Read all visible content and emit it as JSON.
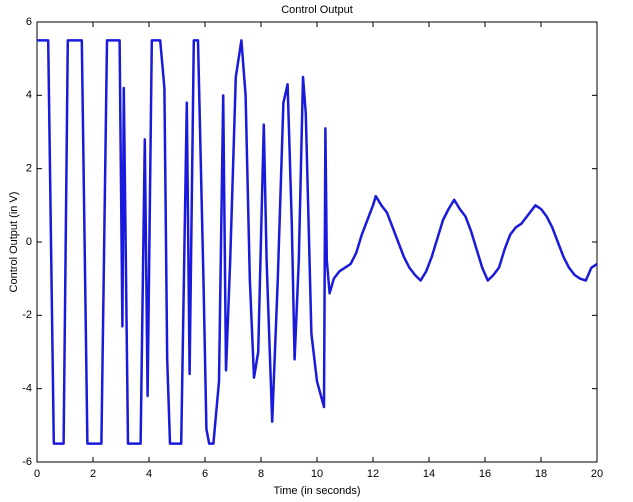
{
  "chart_data": {
    "type": "line",
    "title": "Control Output",
    "x_label": "Time (in seconds)",
    "y_label": "Control Output (in V)",
    "color": "#1a1adc",
    "x": [
      0,
      0.4,
      0.6,
      0.95,
      1.1,
      1.6,
      1.8,
      2.3,
      2.5,
      2.95,
      3.05,
      3.1,
      3.25,
      3.7,
      3.85,
      3.95,
      4.1,
      4.4,
      4.55,
      4.65,
      4.75,
      5.15,
      5.35,
      5.45,
      5.6,
      5.75,
      5.95,
      6.05,
      6.15,
      6.3,
      6.5,
      6.65,
      6.75,
      6.9,
      7.1,
      7.3,
      7.45,
      7.6,
      7.75,
      7.9,
      8.1,
      8.2,
      8.4,
      8.6,
      8.8,
      8.95,
      9.1,
      9.2,
      9.35,
      9.5,
      9.6,
      9.8,
      10.0,
      10.25,
      10.3,
      10.35,
      10.45,
      10.6,
      10.8,
      11.0,
      11.2,
      11.4,
      11.6,
      11.8,
      12.0,
      12.1,
      12.3,
      12.5,
      12.7,
      12.9,
      13.1,
      13.3,
      13.5,
      13.7,
      13.9,
      14.1,
      14.3,
      14.5,
      14.7,
      14.9,
      15.1,
      15.3,
      15.5,
      15.7,
      15.9,
      16.1,
      16.3,
      16.5,
      16.7,
      16.9,
      17.1,
      17.3,
      17.5,
      17.8,
      18.0,
      18.2,
      18.4,
      18.6,
      18.8,
      19.0,
      19.2,
      19.4,
      19.6,
      19.8,
      20.0
    ],
    "values": [
      5.5,
      5.5,
      -5.5,
      -5.5,
      5.5,
      5.5,
      -5.5,
      -5.5,
      5.5,
      5.5,
      -2.3,
      4.2,
      -5.5,
      -5.5,
      2.8,
      -4.2,
      5.5,
      5.5,
      4.2,
      -3.2,
      -5.5,
      -5.5,
      3.8,
      -3.6,
      5.5,
      5.5,
      -1.2,
      -5.1,
      -5.5,
      -5.5,
      -3.8,
      4.0,
      -3.5,
      -0.5,
      4.5,
      5.5,
      4.0,
      -1,
      -3.7,
      -3,
      3.2,
      -0.5,
      -4.9,
      -1,
      3.8,
      4.3,
      0.5,
      -3.2,
      -0.5,
      4.5,
      3.5,
      -2.5,
      -3.8,
      -4.5,
      3.1,
      -0.5,
      -1.4,
      -1.0,
      -0.8,
      -0.7,
      -0.6,
      -0.3,
      0.2,
      0.6,
      1.0,
      1.25,
      1.0,
      0.8,
      0.4,
      0.0,
      -0.4,
      -0.7,
      -0.9,
      -1.05,
      -0.8,
      -0.4,
      0.1,
      0.6,
      0.9,
      1.15,
      0.9,
      0.7,
      0.3,
      -0.2,
      -0.7,
      -1.05,
      -0.9,
      -0.7,
      -0.2,
      0.2,
      0.4,
      0.5,
      0.7,
      1.0,
      0.9,
      0.7,
      0.4,
      0.0,
      -0.4,
      -0.7,
      -0.9,
      -1.0,
      -1.05,
      -0.7,
      -0.6
    ],
    "xlim": [
      0,
      20
    ],
    "ylim": [
      -6,
      6
    ],
    "xticks": [
      0,
      2,
      4,
      6,
      8,
      10,
      12,
      14,
      16,
      18,
      20
    ],
    "yticks": [
      -6,
      -4,
      -2,
      0,
      2,
      4,
      6
    ]
  }
}
